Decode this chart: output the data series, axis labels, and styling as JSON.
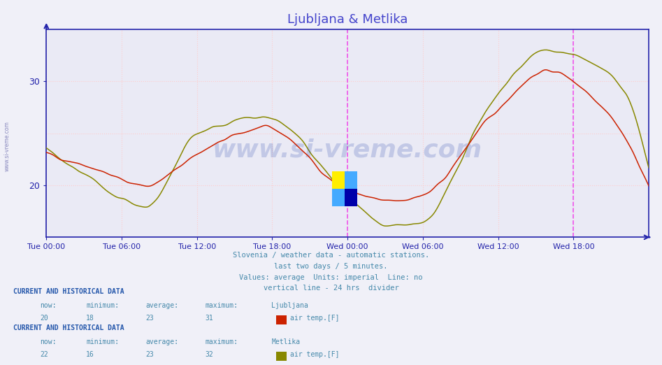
{
  "title": "Ljubljana & Metlika",
  "title_color": "#4444cc",
  "bg_color": "#f0f0f8",
  "plot_bg_color": "#eaeaf5",
  "grid_color_v": "#ffcccc",
  "grid_color_h": "#ffcccc",
  "xlabel_color": "#4444cc",
  "ylabel_color": "#4444cc",
  "axis_color": "#2222aa",
  "line1_color": "#cc2200",
  "line2_color": "#888800",
  "ylim": [
    15,
    35
  ],
  "yticks": [
    20,
    30
  ],
  "xtick_labels": [
    "Tue 00:00",
    "Tue 06:00",
    "Tue 12:00",
    "Tue 18:00",
    "Wed 00:00",
    "Wed 06:00",
    "Wed 12:00",
    "Wed 18:00"
  ],
  "xtick_positions": [
    0,
    72,
    144,
    216,
    288,
    360,
    432,
    504
  ],
  "vline_color": "#ee44ee",
  "vline_positions": [
    288,
    504
  ],
  "n_points": 577,
  "subtitle_lines": [
    "Slovenia / weather data - automatic stations.",
    "last two days / 5 minutes.",
    "Values: average  Units: imperial  Line: no",
    "vertical line - 24 hrs  divider"
  ],
  "subtitle_color": "#4488aa",
  "watermark_text": "www.si-vreme.com",
  "watermark_color": "#2244aa",
  "stat_label_color": "#4488aa",
  "stat_value_color": "#4488aa",
  "header_color": "#2255aa",
  "legend1_station": "Ljubljana",
  "legend1_now": "20",
  "legend1_min": "18",
  "legend1_avg": "23",
  "legend1_max": "31",
  "legend1_param": "air temp.[F]",
  "legend2_station": "Metlika",
  "legend2_now": "22",
  "legend2_min": "16",
  "legend2_avg": "23",
  "legend2_max": "32",
  "legend2_param": "air temp.[F]",
  "ljub_x": [
    0,
    3,
    8,
    12,
    17.5,
    24,
    27,
    30,
    35,
    40,
    44,
    48
  ],
  "ljub_y": [
    23.0,
    22.0,
    20.0,
    23.0,
    25.5,
    19.5,
    18.5,
    19.0,
    26.0,
    31.0,
    28.0,
    20.0
  ],
  "metl_x": [
    0,
    3,
    8,
    12,
    17.5,
    24,
    27,
    30,
    35,
    40,
    43,
    46,
    48
  ],
  "metl_y": [
    23.5,
    21.0,
    18.0,
    25.0,
    26.5,
    19.0,
    16.0,
    16.5,
    27.0,
    33.0,
    32.0,
    29.0,
    22.0
  ],
  "logo_colors": [
    "#ffee00",
    "#44aaff",
    "#44aaff",
    "#0000aa"
  ]
}
